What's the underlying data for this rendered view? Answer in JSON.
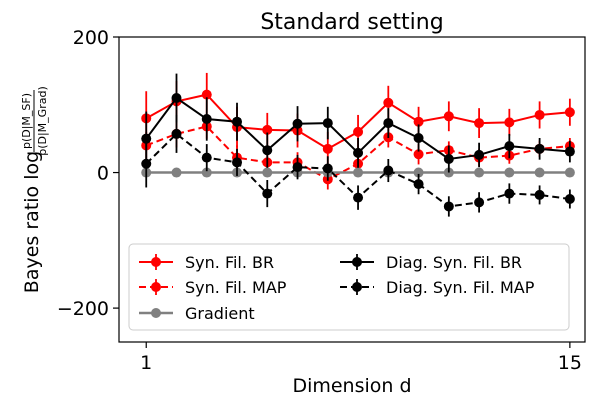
{
  "chart_data": {
    "type": "line",
    "title": "Standard setting",
    "xlabel": "Dimension d",
    "ylabel": "Bayes ratio log",
    "ylabel_fraction": {
      "numerator": "p(D|M_SF)",
      "denominator": "p(D|M_Grad)"
    },
    "xlim": [
      0.1,
      15.5
    ],
    "ylim": [
      -250,
      200
    ],
    "x_ticks": [
      1,
      15
    ],
    "y_ticks": [
      -200,
      0,
      200
    ],
    "x_tick_labels": [
      "1",
      "15"
    ],
    "y_tick_labels": [
      "−200",
      "0",
      "200"
    ],
    "grid": false,
    "legend_position": "lower-left",
    "x": [
      1,
      2,
      3,
      4,
      5,
      6,
      7,
      8,
      9,
      10,
      11,
      12,
      13,
      14,
      15
    ],
    "series": [
      {
        "name": "Syn. Fil. BR",
        "color": "#ff0000",
        "linestyle": "solid",
        "values": [
          80,
          105,
          115,
          67,
          63,
          62,
          35,
          60,
          103,
          75,
          83,
          73,
          74,
          85,
          89
        ],
        "errors": [
          40,
          30,
          32,
          30,
          25,
          25,
          25,
          25,
          25,
          22,
          22,
          22,
          20,
          20,
          20
        ]
      },
      {
        "name": "Syn. Fil. MAP",
        "color": "#ff0000",
        "linestyle": "dashed",
        "values": [
          40,
          57,
          68,
          22,
          15,
          15,
          -10,
          13,
          52,
          27,
          33,
          22,
          25,
          35,
          39
        ],
        "errors": [
          20,
          20,
          18,
          18,
          15,
          15,
          15,
          15,
          15,
          15,
          13,
          13,
          12,
          12,
          12
        ]
      },
      {
        "name": "Gradient",
        "color": "#808080",
        "linestyle": "solid",
        "values": [
          0,
          0,
          0,
          0,
          0,
          0,
          0,
          0,
          0,
          0,
          0,
          0,
          0,
          0,
          0
        ],
        "errors": [
          0,
          0,
          0,
          0,
          0,
          0,
          0,
          0,
          0,
          0,
          0,
          0,
          0,
          0,
          0
        ]
      },
      {
        "name": "Diag. Syn. Fil. BR",
        "color": "#000000",
        "linestyle": "solid",
        "values": [
          50,
          110,
          79,
          75,
          33,
          72,
          73,
          29,
          73,
          51,
          20,
          26,
          39,
          35,
          31
        ],
        "errors": [
          40,
          36,
          32,
          28,
          26,
          26,
          24,
          22,
          22,
          20,
          20,
          18,
          18,
          16,
          16
        ]
      },
      {
        "name": "Diag. Syn. Fil. MAP",
        "color": "#000000",
        "linestyle": "dashed",
        "values": [
          13,
          57,
          22,
          15,
          -31,
          8,
          6,
          -37,
          3,
          -17,
          -50,
          -44,
          -31,
          -33,
          -39
        ],
        "errors": [
          35,
          28,
          20,
          20,
          20,
          18,
          18,
          18,
          17,
          15,
          15,
          15,
          15,
          14,
          14
        ]
      }
    ]
  }
}
